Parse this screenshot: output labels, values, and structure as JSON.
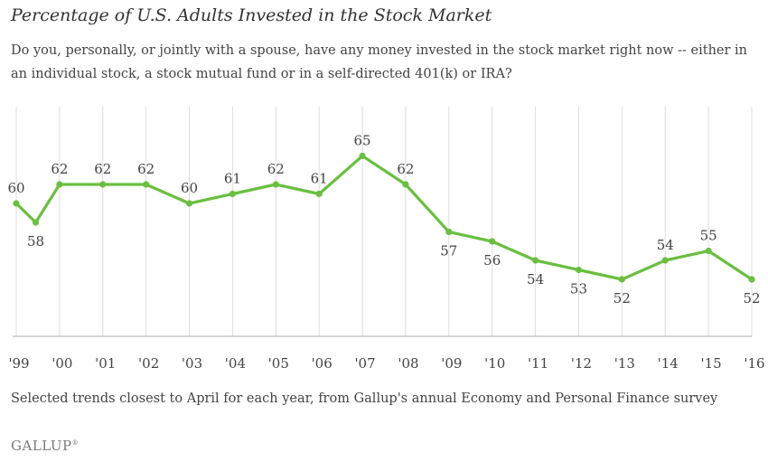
{
  "chart_data": {
    "type": "line",
    "title": "Percentage of U.S. Adults Invested in the Stock Market",
    "subtitle": "Do you, personally, or jointly with a spouse, have any money invested in the stock market right now -- either in an individual stock, a stock mutual fund or in a self-directed 401(k) or IRA?",
    "categories": [
      "'99",
      "'00",
      "'01",
      "'02",
      "'03",
      "'04",
      "'05",
      "'06",
      "'07",
      "'08",
      "'09",
      "'10",
      "'11",
      "'12",
      "'13",
      "'14",
      "'15",
      "'16"
    ],
    "x": [
      1999.0,
      1999.45,
      2000.0,
      2001.0,
      2002.0,
      2003.0,
      2004.0,
      2005.0,
      2006.0,
      2007.0,
      2008.0,
      2009.0,
      2010.0,
      2011.0,
      2012.0,
      2013.0,
      2014.0,
      2015.0,
      2016.0
    ],
    "values": [
      60,
      58,
      62,
      62,
      62,
      60,
      61,
      62,
      61,
      65,
      62,
      57,
      56,
      54,
      53,
      52,
      54,
      55,
      52
    ],
    "labels": [
      "60",
      "58",
      "62",
      "62",
      "62",
      "60",
      "61",
      "62",
      "61",
      "65",
      "62",
      "57",
      "56",
      "54",
      "53",
      "52",
      "54",
      "55",
      "52"
    ],
    "label_positions": [
      "above",
      "below",
      "above",
      "above",
      "above",
      "above",
      "above",
      "above",
      "above",
      "above",
      "above",
      "below",
      "below",
      "below",
      "below",
      "below",
      "above",
      "above",
      "below"
    ],
    "ylim": [
      46,
      68
    ],
    "grid": "vertical",
    "line_color": "#6abf40",
    "grid_color": "#dddddd",
    "note": "Selected trends closest to April for each year, from Gallup's annual Economy and Personal Finance survey"
  },
  "brand": {
    "name": "GALLUP",
    "mark": "®"
  }
}
